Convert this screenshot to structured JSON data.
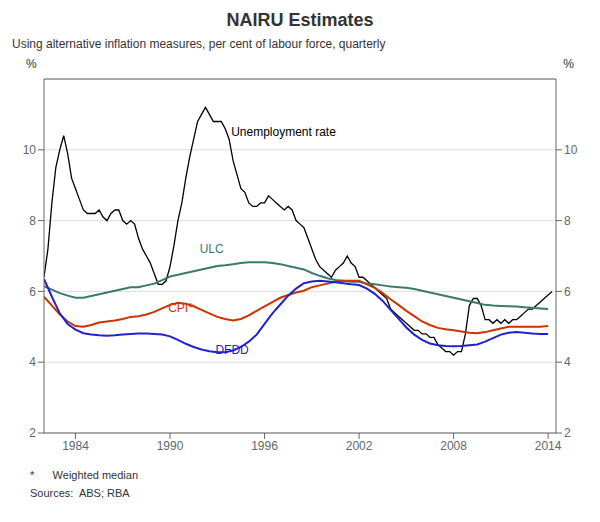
{
  "chart_data": {
    "type": "line",
    "title": "NAIRU Estimates",
    "subtitle": "Using alternative inflation measures, per cent of labour force, quarterly",
    "y_label": "%",
    "y2_label": "%",
    "xlim": [
      1982.0,
      2014.5
    ],
    "xticks": [
      1984,
      1990,
      1996,
      2002,
      2008,
      2014
    ],
    "ylim": [
      2,
      12
    ],
    "yticks": [
      2,
      4,
      6,
      8,
      10
    ],
    "y2lim": [
      2,
      12
    ],
    "y2ticks": [
      2,
      4,
      6,
      8,
      10
    ],
    "grid": true,
    "footnotes": [
      "*      Weighted median",
      "Sources:  ABS; RBA"
    ],
    "annotations": [
      {
        "text": "Unemployment rate",
        "x": 1993.5,
        "y": 10.5,
        "color": "#000000"
      },
      {
        "text": "ULC",
        "x": 1991.5,
        "y": 7.2,
        "color": "#3a7a6e"
      },
      {
        "text": "CPI*",
        "x": 1989.5,
        "y": 5.55,
        "color": "#cc3300"
      },
      {
        "text": "DFDD",
        "x": 1992.5,
        "y": 4.35,
        "color": "#2222cc"
      }
    ],
    "series": [
      {
        "name": "Unemployment rate",
        "color": "#000000",
        "x": [
          1982.0,
          1982.25,
          1982.5,
          1982.75,
          1983.0,
          1983.25,
          1983.5,
          1983.75,
          1984.0,
          1984.25,
          1984.5,
          1984.75,
          1985.0,
          1985.25,
          1985.5,
          1985.75,
          1986.0,
          1986.25,
          1986.5,
          1986.75,
          1987.0,
          1987.25,
          1987.5,
          1987.75,
          1988.0,
          1988.25,
          1988.5,
          1988.75,
          1989.0,
          1989.25,
          1989.5,
          1989.75,
          1990.0,
          1990.25,
          1990.5,
          1990.75,
          1991.0,
          1991.25,
          1991.5,
          1991.75,
          1992.0,
          1992.25,
          1992.5,
          1992.75,
          1993.0,
          1993.25,
          1993.5,
          1993.75,
          1994.0,
          1994.25,
          1994.5,
          1994.75,
          1995.0,
          1995.25,
          1995.5,
          1995.75,
          1996.0,
          1996.25,
          1996.5,
          1996.75,
          1997.0,
          1997.25,
          1997.5,
          1997.75,
          1998.0,
          1998.25,
          1998.5,
          1998.75,
          1999.0,
          1999.25,
          1999.5,
          1999.75,
          2000.0,
          2000.25,
          2000.5,
          2000.75,
          2001.0,
          2001.25,
          2001.5,
          2001.75,
          2002.0,
          2002.25,
          2002.5,
          2002.75,
          2003.0,
          2003.25,
          2003.5,
          2003.75,
          2004.0,
          2004.25,
          2004.5,
          2004.75,
          2005.0,
          2005.25,
          2005.5,
          2005.75,
          2006.0,
          2006.25,
          2006.5,
          2006.75,
          2007.0,
          2007.25,
          2007.5,
          2007.75,
          2008.0,
          2008.25,
          2008.5,
          2008.75,
          2009.0,
          2009.25,
          2009.5,
          2009.75,
          2010.0,
          2010.25,
          2010.5,
          2010.75,
          2011.0,
          2011.25,
          2011.5,
          2011.75,
          2012.0,
          2012.25,
          2012.5,
          2012.75,
          2013.0,
          2013.25,
          2013.5,
          2013.75,
          2014.0,
          2014.25
        ],
        "values": [
          6.4,
          7.2,
          8.5,
          9.5,
          10.0,
          10.4,
          9.9,
          9.2,
          8.9,
          8.6,
          8.3,
          8.2,
          8.2,
          8.2,
          8.3,
          8.1,
          8.0,
          8.2,
          8.3,
          8.3,
          8.0,
          7.9,
          8.0,
          7.9,
          7.5,
          7.2,
          7.0,
          6.8,
          6.5,
          6.2,
          6.2,
          6.3,
          6.7,
          7.3,
          8.0,
          8.5,
          9.2,
          9.8,
          10.3,
          10.8,
          11.0,
          11.2,
          11.0,
          10.8,
          10.8,
          10.8,
          10.6,
          10.3,
          9.7,
          9.3,
          8.9,
          8.8,
          8.5,
          8.4,
          8.4,
          8.5,
          8.5,
          8.7,
          8.6,
          8.5,
          8.4,
          8.3,
          8.4,
          8.3,
          8.0,
          7.9,
          7.8,
          7.5,
          7.2,
          6.9,
          6.7,
          6.6,
          6.5,
          6.4,
          6.6,
          6.7,
          6.8,
          7.0,
          6.8,
          6.7,
          6.4,
          6.4,
          6.3,
          6.2,
          6.1,
          6.0,
          5.9,
          5.8,
          5.5,
          5.4,
          5.3,
          5.2,
          5.1,
          5.0,
          4.9,
          4.9,
          4.8,
          4.8,
          4.7,
          4.7,
          4.5,
          4.4,
          4.3,
          4.3,
          4.2,
          4.3,
          4.3,
          4.8,
          5.6,
          5.8,
          5.8,
          5.6,
          5.2,
          5.2,
          5.1,
          5.2,
          5.1,
          5.2,
          5.1,
          5.2,
          5.2,
          5.3,
          5.4,
          5.5,
          5.5,
          5.6,
          5.7,
          5.8,
          5.9,
          6.0
        ]
      },
      {
        "name": "ULC",
        "color": "#3a7a6e",
        "x": [
          1982.0,
          1982.5,
          1983.0,
          1983.5,
          1984.0,
          1984.5,
          1985.0,
          1985.5,
          1986.0,
          1986.5,
          1987.0,
          1987.5,
          1988.0,
          1988.5,
          1989.0,
          1989.5,
          1990.0,
          1990.5,
          1991.0,
          1991.5,
          1992.0,
          1992.5,
          1993.0,
          1993.5,
          1994.0,
          1994.5,
          1995.0,
          1995.5,
          1996.0,
          1996.5,
          1997.0,
          1997.5,
          1998.0,
          1998.5,
          1999.0,
          1999.5,
          2000.0,
          2000.5,
          2001.0,
          2001.5,
          2002.0,
          2002.5,
          2003.0,
          2003.5,
          2004.0,
          2004.5,
          2005.0,
          2005.5,
          2006.0,
          2006.5,
          2007.0,
          2007.5,
          2008.0,
          2008.5,
          2009.0,
          2009.5,
          2010.0,
          2010.5,
          2011.0,
          2011.5,
          2012.0,
          2012.5,
          2013.0,
          2013.5,
          2014.0
        ],
        "values": [
          6.15,
          6.05,
          5.95,
          5.88,
          5.82,
          5.82,
          5.87,
          5.92,
          5.97,
          6.02,
          6.07,
          6.12,
          6.12,
          6.17,
          6.22,
          6.32,
          6.42,
          6.47,
          6.52,
          6.57,
          6.62,
          6.67,
          6.72,
          6.74,
          6.77,
          6.8,
          6.82,
          6.82,
          6.82,
          6.8,
          6.77,
          6.72,
          6.67,
          6.62,
          6.52,
          6.44,
          6.37,
          6.32,
          6.3,
          6.27,
          6.27,
          6.22,
          6.2,
          6.17,
          6.14,
          6.12,
          6.1,
          6.07,
          6.02,
          5.97,
          5.92,
          5.87,
          5.82,
          5.77,
          5.72,
          5.67,
          5.62,
          5.6,
          5.59,
          5.58,
          5.57,
          5.55,
          5.54,
          5.52,
          5.5
        ]
      },
      {
        "name": "CPI*",
        "color": "#cc3300",
        "x": [
          1982.0,
          1982.5,
          1983.0,
          1983.5,
          1984.0,
          1984.5,
          1985.0,
          1985.5,
          1986.0,
          1986.5,
          1987.0,
          1987.5,
          1988.0,
          1988.5,
          1989.0,
          1989.5,
          1990.0,
          1990.5,
          1991.0,
          1991.5,
          1992.0,
          1992.5,
          1993.0,
          1993.5,
          1994.0,
          1994.5,
          1995.0,
          1995.5,
          1996.0,
          1996.5,
          1997.0,
          1997.5,
          1998.0,
          1998.5,
          1999.0,
          1999.5,
          2000.0,
          2000.5,
          2001.0,
          2001.5,
          2002.0,
          2002.5,
          2003.0,
          2003.5,
          2004.0,
          2004.5,
          2005.0,
          2005.5,
          2006.0,
          2006.5,
          2007.0,
          2007.5,
          2008.0,
          2008.5,
          2009.0,
          2009.5,
          2010.0,
          2010.5,
          2011.0,
          2011.5,
          2012.0,
          2012.5,
          2013.0,
          2013.5,
          2014.0
        ],
        "values": [
          5.85,
          5.6,
          5.35,
          5.15,
          5.02,
          5.0,
          5.05,
          5.12,
          5.15,
          5.18,
          5.22,
          5.28,
          5.3,
          5.35,
          5.42,
          5.52,
          5.62,
          5.68,
          5.65,
          5.58,
          5.48,
          5.38,
          5.28,
          5.22,
          5.18,
          5.22,
          5.32,
          5.45,
          5.58,
          5.7,
          5.82,
          5.9,
          5.97,
          6.02,
          6.12,
          6.17,
          6.22,
          6.27,
          6.3,
          6.3,
          6.3,
          6.2,
          6.1,
          5.95,
          5.78,
          5.62,
          5.45,
          5.3,
          5.15,
          5.05,
          4.97,
          4.93,
          4.9,
          4.87,
          4.83,
          4.82,
          4.85,
          4.9,
          4.95,
          5.0,
          5.0,
          5.0,
          5.0,
          5.0,
          5.02
        ]
      },
      {
        "name": "DFDD",
        "color": "#2222cc",
        "x": [
          1982.0,
          1982.5,
          1983.0,
          1983.5,
          1984.0,
          1984.5,
          1985.0,
          1985.5,
          1986.0,
          1986.5,
          1987.0,
          1987.5,
          1988.0,
          1988.5,
          1989.0,
          1989.5,
          1990.0,
          1990.5,
          1991.0,
          1991.5,
          1992.0,
          1992.5,
          1993.0,
          1993.5,
          1994.0,
          1994.5,
          1995.0,
          1995.5,
          1996.0,
          1996.5,
          1997.0,
          1997.5,
          1998.0,
          1998.5,
          1999.0,
          1999.5,
          2000.0,
          2000.5,
          2001.0,
          2001.5,
          2002.0,
          2002.5,
          2003.0,
          2003.5,
          2004.0,
          2004.5,
          2005.0,
          2005.5,
          2006.0,
          2006.5,
          2007.0,
          2007.5,
          2008.0,
          2008.5,
          2009.0,
          2009.5,
          2010.0,
          2010.5,
          2011.0,
          2011.5,
          2012.0,
          2012.5,
          2013.0,
          2013.5,
          2014.0
        ],
        "values": [
          6.35,
          5.85,
          5.38,
          5.08,
          4.92,
          4.82,
          4.78,
          4.76,
          4.75,
          4.76,
          4.78,
          4.8,
          4.81,
          4.81,
          4.8,
          4.78,
          4.73,
          4.63,
          4.52,
          4.43,
          4.36,
          4.31,
          4.28,
          4.28,
          4.33,
          4.43,
          4.58,
          4.78,
          5.08,
          5.38,
          5.63,
          5.88,
          6.08,
          6.23,
          6.28,
          6.3,
          6.28,
          6.26,
          6.23,
          6.2,
          6.18,
          6.08,
          5.93,
          5.73,
          5.48,
          5.23,
          4.98,
          4.78,
          4.63,
          4.53,
          4.48,
          4.46,
          4.45,
          4.46,
          4.48,
          4.5,
          4.58,
          4.68,
          4.78,
          4.83,
          4.85,
          4.83,
          4.81,
          4.8,
          4.8
        ]
      }
    ]
  }
}
